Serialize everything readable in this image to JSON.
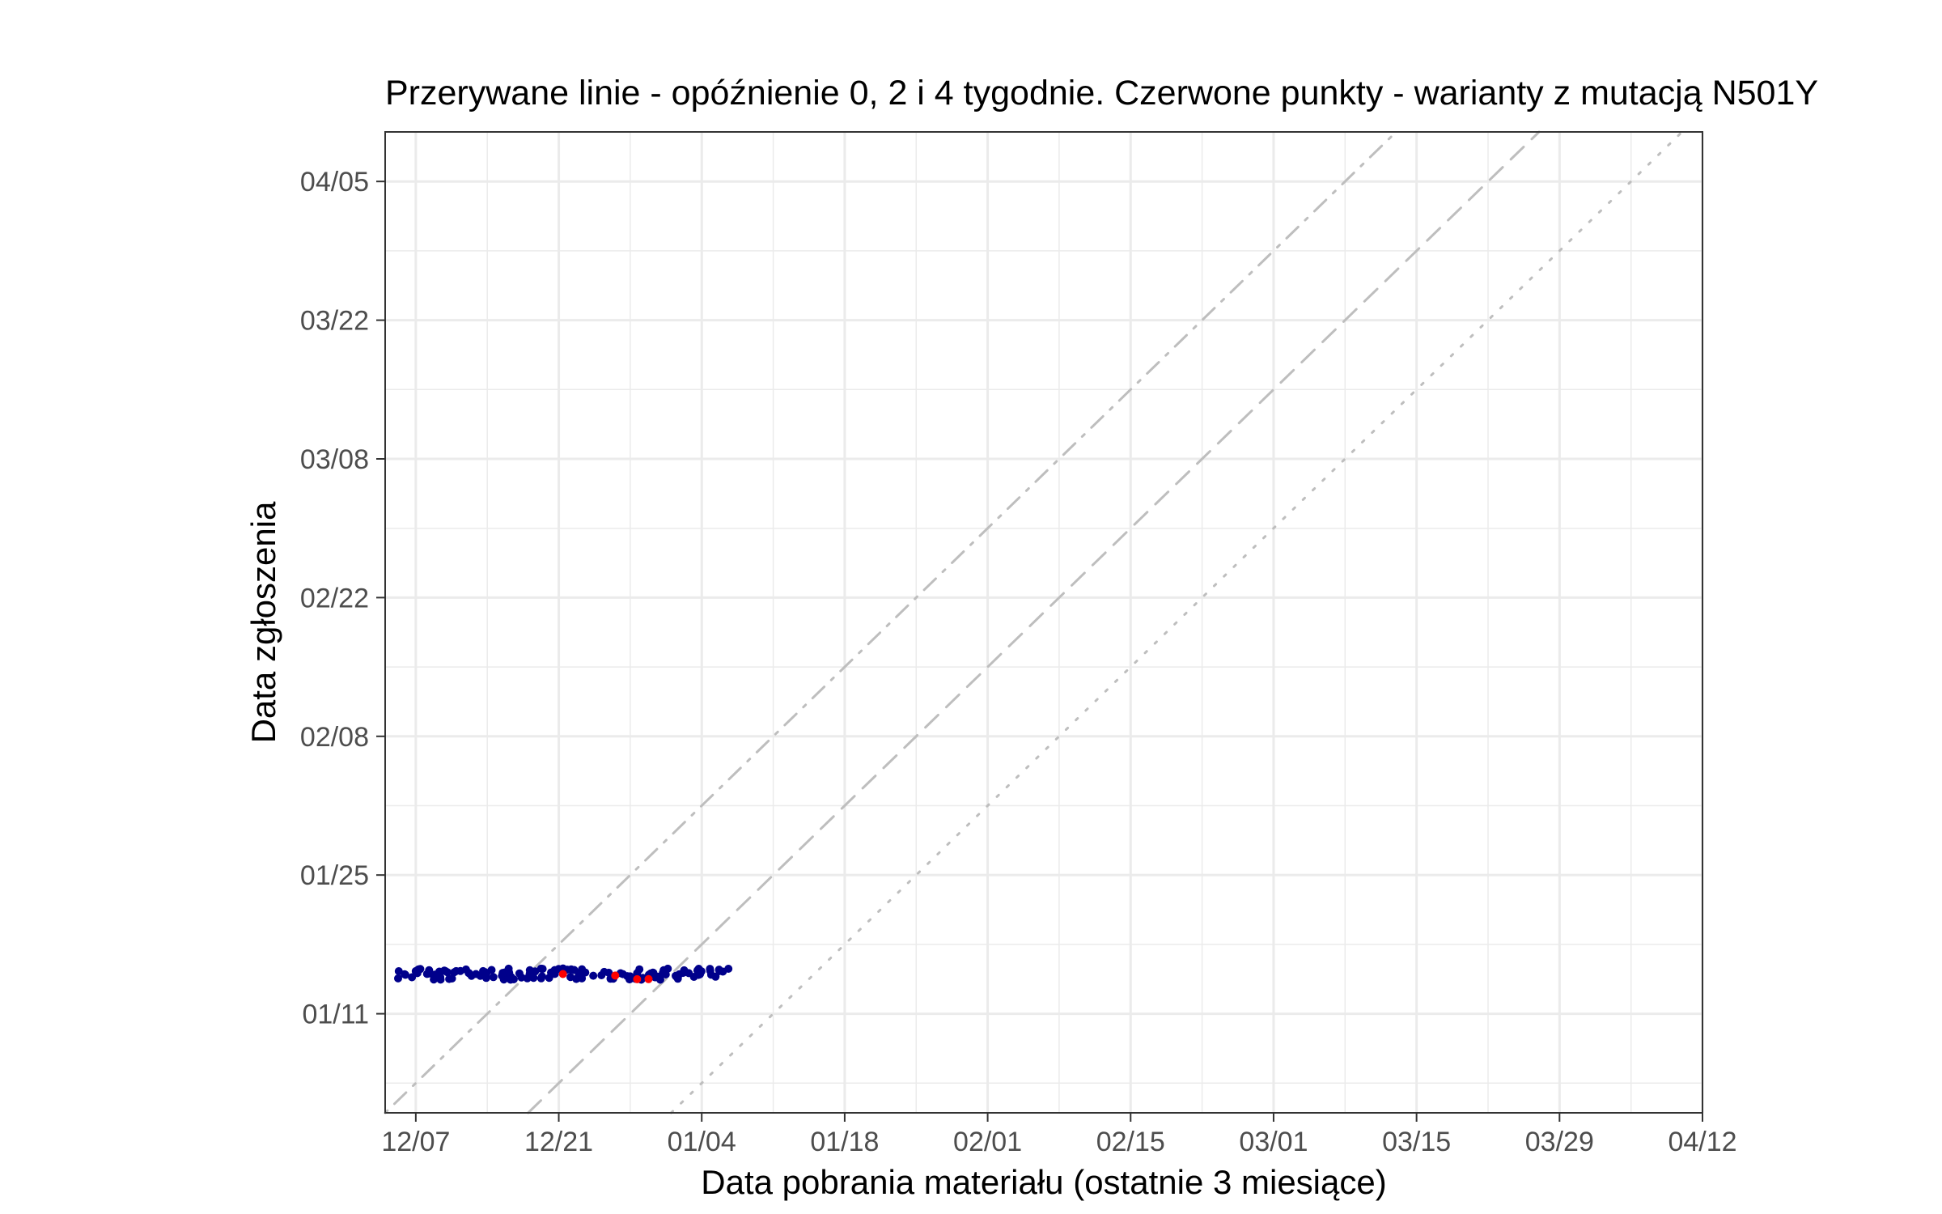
{
  "chart_data": {
    "type": "scatter",
    "title": "Przerywane linie - opóźnienie 0, 2 i 4 tygodnie. Czerwone punkty - warianty z mutacją N501Y",
    "xlabel": "Data pobrania materiału (ostatnie 3 miesiące)",
    "ylabel": "Data zgłoszenia",
    "x_axis": {
      "type": "date",
      "range": [
        "2020-12-04",
        "2021-04-12"
      ],
      "ticks": [
        "2020-12-07",
        "2020-12-21",
        "2021-01-04",
        "2021-01-18",
        "2021-02-01",
        "2021-02-15",
        "2021-03-01",
        "2021-03-15",
        "2021-03-29",
        "2021-04-12"
      ],
      "tick_labels": [
        "12/07",
        "12/21",
        "01/04",
        "01/18",
        "02/01",
        "02/15",
        "03/01",
        "03/15",
        "03/29",
        "04/12"
      ]
    },
    "y_axis": {
      "type": "date",
      "range": [
        "2021-01-01",
        "2021-04-10"
      ],
      "ticks": [
        "2021-01-11",
        "2021-01-25",
        "2021-02-08",
        "2021-02-22",
        "2021-03-08",
        "2021-03-22",
        "2021-04-05"
      ],
      "tick_labels": [
        "01/11",
        "01/25",
        "02/08",
        "02/22",
        "03/08",
        "03/22",
        "04/05"
      ]
    },
    "grid": true,
    "reference_lines": [
      {
        "delay_weeks": 0,
        "style": "dotted"
      },
      {
        "delay_weeks": 2,
        "style": "dashed"
      },
      {
        "delay_weeks": 4,
        "style": "dotdash"
      }
    ],
    "series": [
      {
        "color": "#00008b",
        "points": [
          {
            "x": "2020-12-06",
            "y": "2021-01-15"
          },
          {
            "x": "2020-12-07",
            "y": "2021-01-15"
          },
          {
            "x": "2020-12-08",
            "y": "2021-01-15"
          },
          {
            "x": "2020-12-09",
            "y": "2021-01-15"
          },
          {
            "x": "2020-12-10",
            "y": "2021-01-15"
          },
          {
            "x": "2020-12-11",
            "y": "2021-01-15"
          },
          {
            "x": "2020-12-12",
            "y": "2021-01-15"
          },
          {
            "x": "2020-12-13",
            "y": "2021-01-15"
          },
          {
            "x": "2020-12-14",
            "y": "2021-01-15"
          },
          {
            "x": "2020-12-15",
            "y": "2021-01-15"
          },
          {
            "x": "2020-12-16",
            "y": "2021-01-15"
          },
          {
            "x": "2020-12-17",
            "y": "2021-01-15"
          },
          {
            "x": "2020-12-18",
            "y": "2021-01-15"
          },
          {
            "x": "2020-12-19",
            "y": "2021-01-15"
          },
          {
            "x": "2020-12-20",
            "y": "2021-01-15"
          },
          {
            "x": "2020-12-21",
            "y": "2021-01-15"
          },
          {
            "x": "2020-12-22",
            "y": "2021-01-15"
          },
          {
            "x": "2020-12-23",
            "y": "2021-01-15"
          },
          {
            "x": "2020-12-24",
            "y": "2021-01-15"
          },
          {
            "x": "2020-12-26",
            "y": "2021-01-15"
          },
          {
            "x": "2020-12-27",
            "y": "2021-01-15"
          },
          {
            "x": "2020-12-28",
            "y": "2021-01-15"
          },
          {
            "x": "2020-12-29",
            "y": "2021-01-15"
          },
          {
            "x": "2020-12-30",
            "y": "2021-01-15"
          },
          {
            "x": "2020-12-31",
            "y": "2021-01-15"
          },
          {
            "x": "2021-01-01",
            "y": "2021-01-15"
          },
          {
            "x": "2021-01-02",
            "y": "2021-01-15"
          },
          {
            "x": "2021-01-03",
            "y": "2021-01-15"
          },
          {
            "x": "2021-01-04",
            "y": "2021-01-15"
          },
          {
            "x": "2021-01-05",
            "y": "2021-01-15"
          },
          {
            "x": "2021-01-06",
            "y": "2021-01-15"
          }
        ]
      },
      {
        "color": "#ff0000",
        "points": [
          {
            "x": "2020-12-21",
            "y": "2021-01-15"
          },
          {
            "x": "2020-12-27",
            "y": "2021-01-15"
          },
          {
            "x": "2020-12-28",
            "y": "2021-01-15"
          },
          {
            "x": "2020-12-30",
            "y": "2021-01-15"
          }
        ]
      }
    ]
  }
}
